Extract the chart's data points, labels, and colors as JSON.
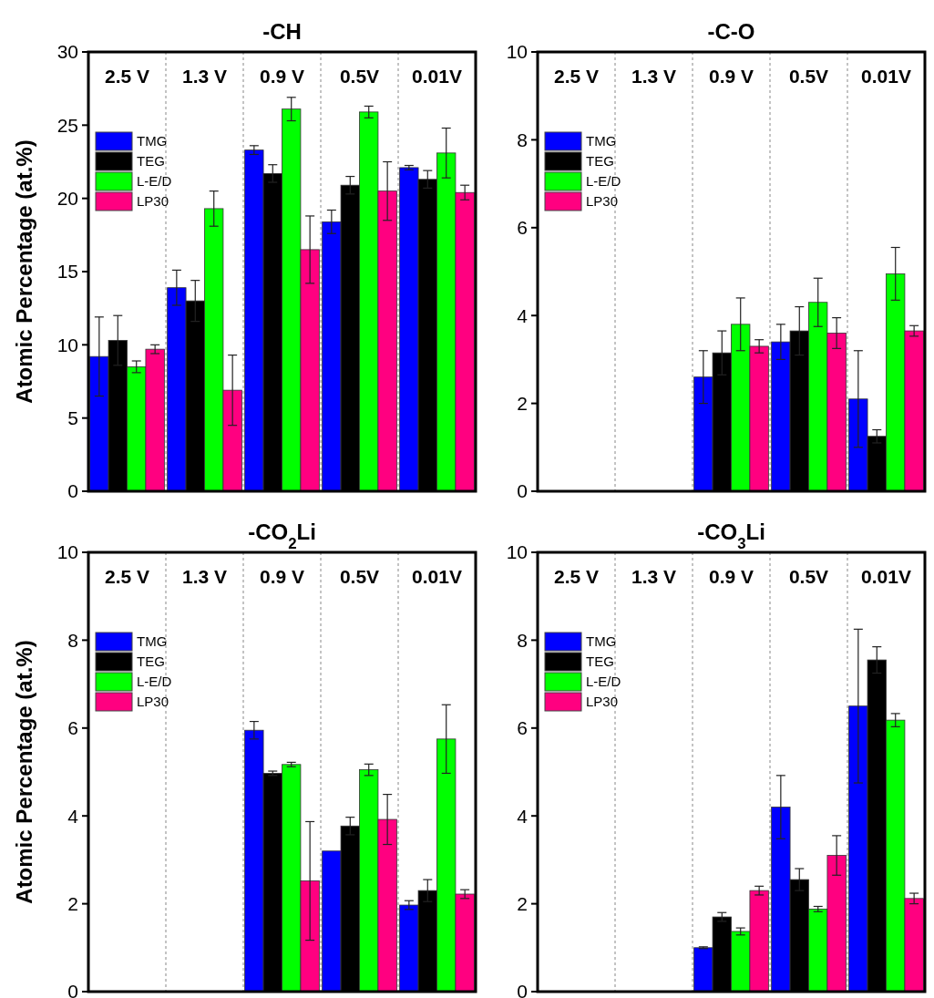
{
  "chart_data": [
    {
      "type": "bar",
      "title": "-CH",
      "ylabel": "Atomic Percentage (at.%)",
      "categories": [
        "2.5 V",
        "1.3 V",
        "0.9 V",
        "0.5V",
        "0.01V"
      ],
      "ylim": [
        0,
        30
      ],
      "yticks": [
        0,
        5,
        10,
        15,
        20,
        25,
        30
      ],
      "grid": false,
      "legend": "top left",
      "series": [
        {
          "name": "TMG",
          "color": "#0000ff",
          "values": [
            9.2,
            13.9,
            23.3,
            18.4,
            22.1
          ],
          "errors": [
            2.7,
            1.2,
            0.3,
            0.8,
            0.15
          ]
        },
        {
          "name": "TEG",
          "color": "#000000",
          "values": [
            10.3,
            13.0,
            21.7,
            20.9,
            21.3
          ],
          "errors": [
            1.7,
            1.4,
            0.6,
            0.6,
            0.6
          ]
        },
        {
          "name": "L-E/D",
          "color": "#00ff00",
          "values": [
            8.5,
            19.3,
            26.1,
            25.9,
            23.1
          ],
          "errors": [
            0.4,
            1.2,
            0.8,
            0.4,
            1.7
          ]
        },
        {
          "name": "LP30",
          "color": "#ff0080",
          "values": [
            9.7,
            6.9,
            16.5,
            20.5,
            20.4
          ],
          "errors": [
            0.3,
            2.4,
            2.3,
            2.0,
            0.5
          ]
        }
      ]
    },
    {
      "type": "bar",
      "title": "-C-O",
      "categories": [
        "2.5 V",
        "1.3 V",
        "0.9 V",
        "0.5V",
        "0.01V"
      ],
      "ylim": [
        0,
        10
      ],
      "yticks": [
        0,
        2,
        4,
        6,
        8,
        10
      ],
      "grid": false,
      "legend": "top left",
      "series": [
        {
          "name": "TMG",
          "color": "#0000ff",
          "values": [
            null,
            null,
            2.6,
            3.4,
            2.1
          ],
          "errors": [
            null,
            null,
            0.6,
            0.4,
            1.1
          ]
        },
        {
          "name": "TEG",
          "color": "#000000",
          "values": [
            null,
            null,
            3.15,
            3.65,
            1.25
          ],
          "errors": [
            null,
            null,
            0.5,
            0.55,
            0.15
          ]
        },
        {
          "name": "L-E/D",
          "color": "#00ff00",
          "values": [
            null,
            null,
            3.8,
            4.3,
            4.95
          ],
          "errors": [
            null,
            null,
            0.6,
            0.55,
            0.6
          ]
        },
        {
          "name": "LP30",
          "color": "#ff0080",
          "values": [
            null,
            null,
            3.3,
            3.6,
            3.65
          ],
          "errors": [
            null,
            null,
            0.15,
            0.35,
            0.12
          ]
        }
      ]
    },
    {
      "type": "bar",
      "title": "-CO$_{2}$Li",
      "ylabel": "Atomic Percentage (at.%)",
      "categories": [
        "2.5 V",
        "1.3 V",
        "0.9 V",
        "0.5V",
        "0.01V"
      ],
      "ylim": [
        0,
        10
      ],
      "yticks": [
        0,
        2,
        4,
        6,
        8,
        10
      ],
      "grid": false,
      "legend": "top left",
      "series": [
        {
          "name": "TMG",
          "color": "#0000ff",
          "values": [
            null,
            null,
            5.95,
            3.2,
            1.97
          ],
          "errors": [
            null,
            null,
            0.2,
            null,
            0.1
          ]
        },
        {
          "name": "TEG",
          "color": "#000000",
          "values": [
            null,
            null,
            4.97,
            3.77,
            2.3
          ],
          "errors": [
            null,
            null,
            0.05,
            0.2,
            0.25
          ]
        },
        {
          "name": "L-E/D",
          "color": "#00ff00",
          "values": [
            null,
            null,
            5.17,
            5.05,
            5.75
          ],
          "errors": [
            null,
            null,
            0.05,
            0.13,
            0.78
          ]
        },
        {
          "name": "LP30",
          "color": "#ff0080",
          "values": [
            null,
            null,
            2.52,
            3.92,
            2.22
          ],
          "errors": [
            null,
            null,
            1.35,
            0.57,
            0.1
          ]
        }
      ]
    },
    {
      "type": "bar",
      "title": "-CO$_{3}$Li",
      "categories": [
        "2.5 V",
        "1.3 V",
        "0.9 V",
        "0.5V",
        "0.01V"
      ],
      "ylim": [
        0,
        10
      ],
      "yticks": [
        0,
        2,
        4,
        6,
        8,
        10
      ],
      "grid": false,
      "legend": "top left",
      "series": [
        {
          "name": "TMG",
          "color": "#0000ff",
          "values": [
            null,
            null,
            1.0,
            4.2,
            6.5
          ],
          "errors": [
            null,
            null,
            0.02,
            0.72,
            1.75
          ]
        },
        {
          "name": "TEG",
          "color": "#000000",
          "values": [
            null,
            null,
            1.7,
            2.55,
            7.55
          ],
          "errors": [
            null,
            null,
            0.1,
            0.25,
            0.3
          ]
        },
        {
          "name": "L-E/D",
          "color": "#00ff00",
          "values": [
            null,
            null,
            1.37,
            1.88,
            6.18
          ],
          "errors": [
            null,
            null,
            0.08,
            0.06,
            0.15
          ]
        },
        {
          "name": "LP30",
          "color": "#ff0080",
          "values": [
            null,
            null,
            2.3,
            3.1,
            2.12
          ],
          "errors": [
            null,
            null,
            0.1,
            0.45,
            0.12
          ]
        }
      ]
    }
  ]
}
